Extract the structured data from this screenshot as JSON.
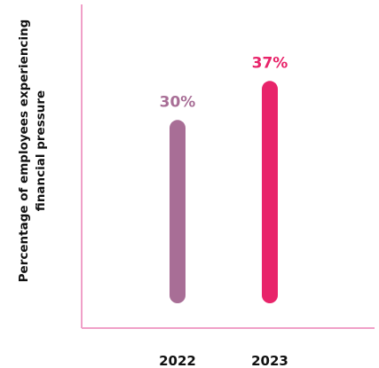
{
  "chart_data": {
    "type": "bar",
    "categories": [
      "2022",
      "2023"
    ],
    "values": [
      30,
      37
    ],
    "value_labels": [
      "30%",
      "37%"
    ],
    "unit": "%",
    "title": "",
    "xlabel": "",
    "ylabel_lines": [
      "Percentage of employees experiencing",
      "financial pressure"
    ],
    "ylim": [
      0,
      42
    ],
    "grid": false,
    "legend": "none",
    "bar_colors": [
      "#a86e96",
      "#e8246a"
    ],
    "axis_color": "#f0a0c8"
  }
}
